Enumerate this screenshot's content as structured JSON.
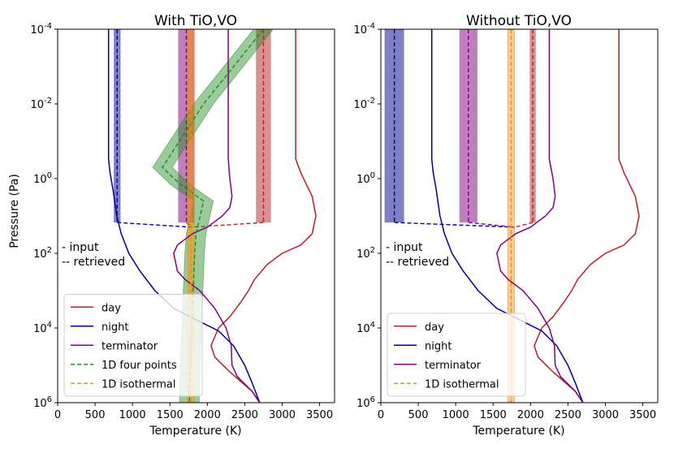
{
  "figure": {
    "ylabel": "Pressure (Pa)",
    "xlabel": "Temperature (K)"
  },
  "annotation": {
    "input": "-  input",
    "retrieved": "-- retrieved"
  },
  "chart_data": [
    {
      "type": "line",
      "title": "With TiO,VO",
      "xlabel": "Temperature (K)",
      "ylabel": "Pressure (Pa)",
      "xlim": [
        0,
        3700
      ],
      "ylim": [
        0.0001,
        1000000.0
      ],
      "y_scale": "log",
      "y_inverted": true,
      "grid": false,
      "legend_position": "lower-left",
      "xticks": [
        0,
        500,
        1000,
        1500,
        2000,
        2500,
        3000,
        3500
      ],
      "yticks": [
        {
          "value": 0.0001,
          "label": "10^-4"
        },
        {
          "value": 0.01,
          "label": "10^-2"
        },
        {
          "value": 1,
          "label": "10^0"
        },
        {
          "value": 100.0,
          "label": "10^2"
        },
        {
          "value": 10000.0,
          "label": "10^4"
        },
        {
          "value": 1000000.0,
          "label": "10^6"
        }
      ],
      "series": [
        {
          "name": "day",
          "color": "#b22222",
          "style": "solid",
          "points": [
            [
              3180,
              0.0001
            ],
            [
              3180,
              0.3
            ],
            [
              3250,
              0.7
            ],
            [
              3400,
              3
            ],
            [
              3450,
              10
            ],
            [
              3400,
              30
            ],
            [
              3250,
              60
            ],
            [
              3000,
              100
            ],
            [
              2800,
              200
            ],
            [
              2630,
              500
            ],
            [
              2550,
              1000
            ],
            [
              2450,
              2000
            ],
            [
              2300,
              5000
            ],
            [
              2150,
              10000
            ],
            [
              2050,
              30000
            ],
            [
              2100,
              60000
            ],
            [
              2300,
              150000
            ],
            [
              2600,
              500000
            ],
            [
              2700,
              1000000
            ]
          ]
        },
        {
          "name": "night",
          "color": "#00008b",
          "style": "solid",
          "points": [
            [
              680,
              0.0001
            ],
            [
              680,
              0.3
            ],
            [
              700,
              0.7
            ],
            [
              740,
              2
            ],
            [
              790,
              10
            ],
            [
              850,
              30
            ],
            [
              950,
              100
            ],
            [
              1100,
              300
            ],
            [
              1300,
              1000
            ],
            [
              1550,
              3000
            ],
            [
              1850,
              6000
            ],
            [
              2150,
              12000
            ],
            [
              2350,
              30000
            ],
            [
              2500,
              100000
            ],
            [
              2600,
              300000
            ],
            [
              2700,
              1000000
            ]
          ]
        },
        {
          "name": "terminator",
          "color": "#800080",
          "style": "solid",
          "points": [
            [
              2280,
              0.0001
            ],
            [
              2280,
              0.3
            ],
            [
              2300,
              1
            ],
            [
              2330,
              3
            ],
            [
              2300,
              6
            ],
            [
              2200,
              10
            ],
            [
              2000,
              20
            ],
            [
              1800,
              30
            ],
            [
              1600,
              60
            ],
            [
              1550,
              100
            ],
            [
              1600,
              300
            ],
            [
              1700,
              500
            ],
            [
              1900,
              1000
            ],
            [
              2100,
              3000
            ],
            [
              2250,
              10000
            ],
            [
              2320,
              30000
            ],
            [
              2330,
              100000
            ],
            [
              2400,
              200000
            ],
            [
              2600,
              500000
            ],
            [
              2700,
              1000000
            ]
          ]
        },
        {
          "name": "1D four points",
          "color": "#228b22",
          "style": "dashed",
          "band": true,
          "points": [
            [
              2750,
              0.0001
            ],
            [
              1950,
              0.01
            ],
            [
              1400,
              0.5
            ],
            [
              1650,
              1.5
            ],
            [
              1950,
              4
            ],
            [
              1850,
              30
            ],
            [
              1830,
              100
            ],
            [
              1810,
              1000
            ],
            [
              1790,
              10000
            ],
            [
              1770,
              100000
            ],
            [
              1760,
              1000000
            ]
          ]
        },
        {
          "name": "1D isothermal",
          "color": "#ff8c00",
          "style": "dashed",
          "band": true,
          "points": [
            [
              1780,
              0.0001
            ],
            [
              1780,
              1000000
            ]
          ]
        }
      ],
      "retrieved_bands": [
        {
          "name": "night",
          "color": "#00008b",
          "range": [
            750,
            840
          ]
        },
        {
          "name": "terminator",
          "color": "#800080",
          "range": [
            1610,
            1830
          ]
        },
        {
          "name": "day",
          "color": "#b22222",
          "range": [
            2650,
            2850
          ]
        }
      ],
      "legend": [
        "day",
        "night",
        "terminator",
        "1D four points",
        "1D isothermal"
      ]
    },
    {
      "type": "line",
      "title": "Without TiO,VO",
      "xlabel": "Temperature (K)",
      "ylabel": "",
      "xlim": [
        0,
        3700
      ],
      "ylim": [
        0.0001,
        1000000.0
      ],
      "y_scale": "log",
      "y_inverted": true,
      "grid": false,
      "legend_position": "lower-left",
      "xticks": [
        0,
        500,
        1000,
        1500,
        2000,
        2500,
        3000,
        3500
      ],
      "yticks": [
        {
          "value": 0.0001,
          "label": "10^-4"
        },
        {
          "value": 0.01,
          "label": "10^-2"
        },
        {
          "value": 1,
          "label": "10^0"
        },
        {
          "value": 100.0,
          "label": "10^2"
        },
        {
          "value": 10000.0,
          "label": "10^4"
        },
        {
          "value": 1000000.0,
          "label": "10^6"
        }
      ],
      "series": [
        {
          "name": "day",
          "color": "#b22222",
          "style": "solid",
          "points": [
            [
              3180,
              0.0001
            ],
            [
              3180,
              0.3
            ],
            [
              3250,
              0.7
            ],
            [
              3400,
              3
            ],
            [
              3450,
              10
            ],
            [
              3400,
              30
            ],
            [
              3250,
              60
            ],
            [
              3000,
              100
            ],
            [
              2800,
              200
            ],
            [
              2630,
              500
            ],
            [
              2550,
              1000
            ],
            [
              2450,
              2000
            ],
            [
              2300,
              5000
            ],
            [
              2150,
              10000
            ],
            [
              2050,
              30000
            ],
            [
              2100,
              60000
            ],
            [
              2300,
              150000
            ],
            [
              2600,
              500000
            ],
            [
              2700,
              1000000
            ]
          ]
        },
        {
          "name": "night",
          "color": "#00008b",
          "style": "solid",
          "points": [
            [
              680,
              0.0001
            ],
            [
              680,
              0.3
            ],
            [
              700,
              0.7
            ],
            [
              740,
              2
            ],
            [
              790,
              10
            ],
            [
              850,
              30
            ],
            [
              950,
              100
            ],
            [
              1100,
              300
            ],
            [
              1300,
              1000
            ],
            [
              1550,
              3000
            ],
            [
              1850,
              6000
            ],
            [
              2150,
              12000
            ],
            [
              2350,
              30000
            ],
            [
              2500,
              100000
            ],
            [
              2600,
              300000
            ],
            [
              2700,
              1000000
            ]
          ]
        },
        {
          "name": "terminator",
          "color": "#800080",
          "style": "solid",
          "points": [
            [
              2250,
              0.0001
            ],
            [
              2250,
              0.3
            ],
            [
              2300,
              1
            ],
            [
              2330,
              3
            ],
            [
              2300,
              6
            ],
            [
              2200,
              10
            ],
            [
              2000,
              20
            ],
            [
              1800,
              30
            ],
            [
              1600,
              60
            ],
            [
              1550,
              100
            ],
            [
              1600,
              300
            ],
            [
              1700,
              500
            ],
            [
              1900,
              1000
            ],
            [
              2100,
              3000
            ],
            [
              2250,
              10000
            ],
            [
              2320,
              30000
            ],
            [
              2330,
              100000
            ],
            [
              2400,
              200000
            ],
            [
              2600,
              500000
            ],
            [
              2700,
              1000000
            ]
          ]
        },
        {
          "name": "1D isothermal",
          "color": "#ff8c00",
          "style": "dashed",
          "band": true,
          "points": [
            [
              1740,
              0.0001
            ],
            [
              1740,
              1000000
            ]
          ]
        }
      ],
      "retrieved_bands": [
        {
          "name": "night",
          "color": "#00008b",
          "range": [
            50,
            310
          ]
        },
        {
          "name": "terminator",
          "color": "#800080",
          "range": [
            1050,
            1290
          ]
        },
        {
          "name": "day",
          "color": "#b22222",
          "range": [
            1990,
            2070
          ]
        }
      ],
      "legend": [
        "day",
        "night",
        "terminator",
        "1D isothermal"
      ]
    }
  ]
}
